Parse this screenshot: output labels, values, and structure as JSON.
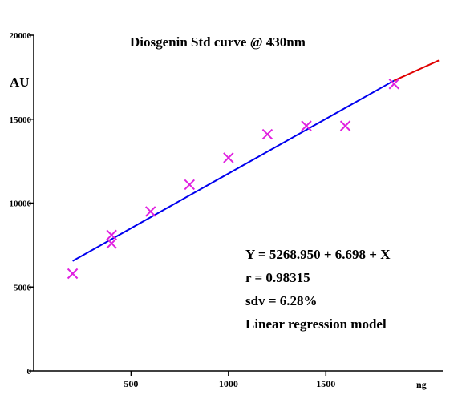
{
  "chart_data": {
    "type": "scatter",
    "title": "Diosgenin Std curve @ 430nm",
    "xlabel": "ng",
    "ylabel": "AU",
    "xlim": [
      0,
      2100
    ],
    "ylim": [
      0,
      20000
    ],
    "x_ticks": [
      500,
      1000,
      1500
    ],
    "y_ticks": [
      0,
      5000,
      10000,
      15000,
      20000
    ],
    "x_tick_labels": [
      "500",
      "1000",
      "1500"
    ],
    "y_tick_labels": [
      "0",
      "5000",
      "10000",
      "15000",
      "20000"
    ],
    "series": [
      {
        "marker": "x",
        "color": "#e020e0",
        "points": [
          {
            "x": 200,
            "y": 5800
          },
          {
            "x": 400,
            "y": 8100
          },
          {
            "x": 400,
            "y": 7600
          },
          {
            "x": 600,
            "y": 9500
          },
          {
            "x": 800,
            "y": 11100
          },
          {
            "x": 1000,
            "y": 12700
          },
          {
            "x": 1200,
            "y": 14100
          },
          {
            "x": 1400,
            "y": 14600
          },
          {
            "x": 1600,
            "y": 14600
          },
          {
            "x": 1850,
            "y": 17100
          }
        ]
      }
    ],
    "fit_line": {
      "color": "#0000ee",
      "x": [
        200,
        1850
      ],
      "y": [
        6550,
        17300
      ]
    },
    "extrapolation_line": {
      "color": "#e00000",
      "x": [
        1850,
        2080
      ],
      "y": [
        17300,
        18500
      ]
    },
    "annotations": [
      "Y = 5268.950 + 6.698 + X",
      "r = 0.98315",
      "sdv = 6.28%",
      "Linear regression model"
    ],
    "grid": false
  }
}
